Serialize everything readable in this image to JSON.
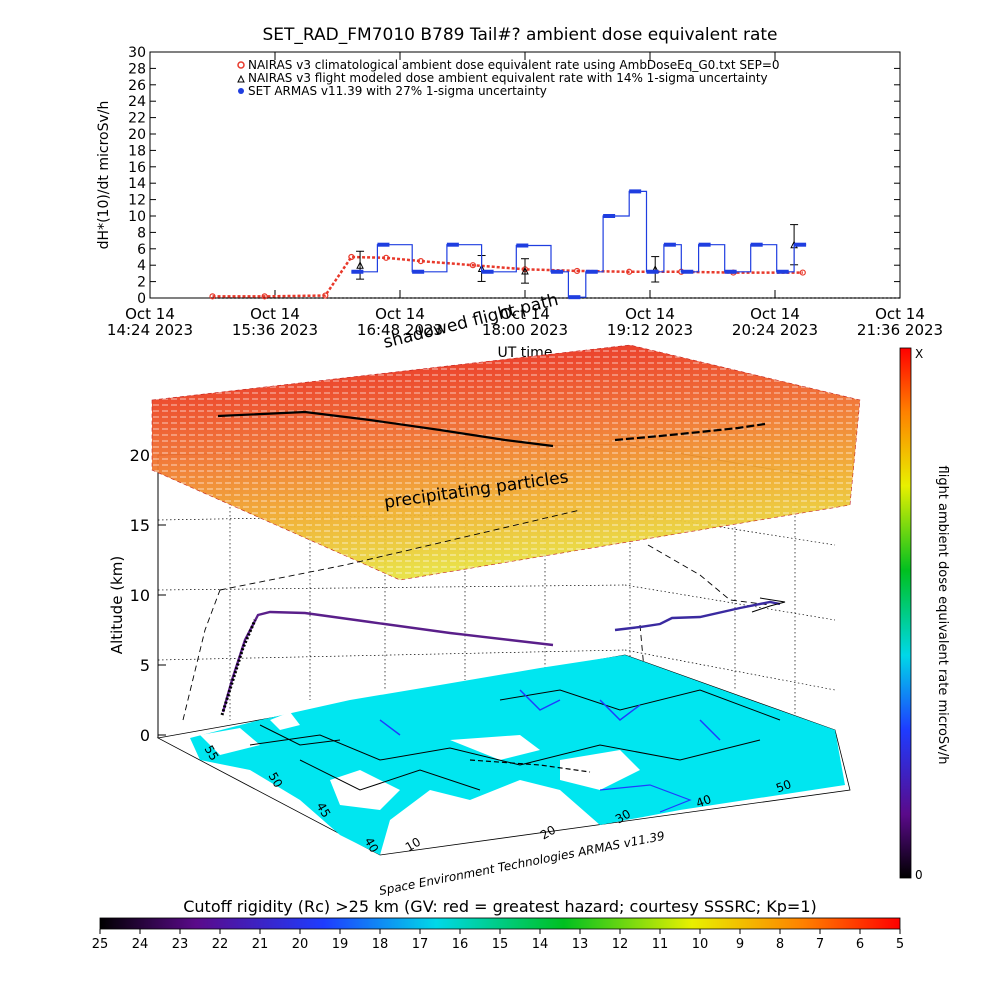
{
  "top_chart": {
    "title": "SET_RAD_FM7010  B789 Tail#? ambient dose equivalent rate",
    "ylabel": "dH*(10)/dt microSv/h",
    "xlabel": "UT time",
    "legend": [
      "NAIRAS v3 climatological ambient dose equivalent rate using AmbDoseEq_G0.txt SEP=0",
      "NAIRAS v3 flight modeled dose ambient equivalent rate with 14% 1-sigma uncertainty",
      "SET ARMAS v11.39 with 27% 1-sigma uncertainty"
    ],
    "x_ticks": [
      {
        "date": "Oct 14",
        "time": "14:24 2023"
      },
      {
        "date": "Oct 14",
        "time": "15:36 2023"
      },
      {
        "date": "Oct 14",
        "time": "16:48 2023"
      },
      {
        "date": "Oct 14",
        "time": "18:00 2023"
      },
      {
        "date": "Oct 14",
        "time": "19:12 2023"
      },
      {
        "date": "Oct 14",
        "time": "20:24 2023"
      },
      {
        "date": "Oct 14",
        "time": "21:36 2023"
      }
    ],
    "y_ticks": [
      "0",
      "2",
      "4",
      "6",
      "8",
      "10",
      "12",
      "14",
      "16",
      "18",
      "20",
      "22",
      "24",
      "26",
      "28",
      "30"
    ]
  },
  "chart_data": [
    {
      "type": "line",
      "title": "SET_RAD_FM7010  B789 Tail#? ambient dose equivalent rate",
      "xlabel": "UT time",
      "ylabel": "dH*(10)/dt microSv/h",
      "xlim": [
        "2023-10-14 14:24",
        "2023-10-14 21:36"
      ],
      "ylim": [
        0,
        30
      ],
      "legend_position": "top",
      "grid": false,
      "series": [
        {
          "name": "NAIRAS v3 climatological ambient dose equivalent rate using AmbDoseEq_G0.txt SEP=0",
          "color": "#e8392b",
          "x": [
            "2023-10-14 15:00",
            "2023-10-14 15:30",
            "2023-10-14 16:05",
            "2023-10-14 16:20",
            "2023-10-14 16:40",
            "2023-10-14 17:00",
            "2023-10-14 17:30",
            "2023-10-14 18:00",
            "2023-10-14 18:30",
            "2023-10-14 19:00",
            "2023-10-14 19:30",
            "2023-10-14 20:00",
            "2023-10-14 20:40"
          ],
          "y": [
            0.2,
            0.2,
            0.3,
            5.0,
            4.9,
            4.5,
            4.0,
            3.5,
            3.3,
            3.2,
            3.2,
            3.1,
            3.1
          ]
        },
        {
          "name": "NAIRAS v3 flight modeled dose ambient equivalent rate with 14% 1-sigma uncertainty",
          "color": "#000000",
          "x": [
            "2023-10-14 16:25",
            "2023-10-14 17:35",
            "2023-10-14 18:00",
            "2023-10-14 19:15",
            "2023-10-14 20:35"
          ],
          "y": [
            4.0,
            3.6,
            3.3,
            3.5,
            6.5
          ]
        },
        {
          "name": "SET ARMAS v11.39 with 27% 1-sigma uncertainty",
          "color": "#1f3ee0",
          "x": [
            "2023-10-14 16:20",
            "2023-10-14 16:35",
            "2023-10-14 16:55",
            "2023-10-14 17:15",
            "2023-10-14 17:35",
            "2023-10-14 17:55",
            "2023-10-14 18:15",
            "2023-10-14 18:25",
            "2023-10-14 18:35",
            "2023-10-14 18:45",
            "2023-10-14 19:00",
            "2023-10-14 19:10",
            "2023-10-14 19:20",
            "2023-10-14 19:30",
            "2023-10-14 19:40",
            "2023-10-14 19:55",
            "2023-10-14 20:10",
            "2023-10-14 20:25",
            "2023-10-14 20:35"
          ],
          "y": [
            3.2,
            6.5,
            3.2,
            6.5,
            3.2,
            6.4,
            3.2,
            0.1,
            3.2,
            10.0,
            13.0,
            3.2,
            6.5,
            3.2,
            6.5,
            3.2,
            6.5,
            3.2,
            6.5
          ]
        }
      ]
    },
    {
      "type": "heatmap",
      "title": "Cutoff rigidity (Rc) >25 km (GV: red = greatest hazard; courtesy SSSRC; Kp=1)",
      "colorbar_ticks": [
        "25",
        "24",
        "23",
        "22",
        "21",
        "20",
        "19",
        "18",
        "17",
        "16",
        "15",
        "14",
        "13",
        "12",
        "11",
        "10",
        "9",
        "8",
        "7",
        "6",
        "5"
      ]
    }
  ],
  "view3d": {
    "altitude_label": "Altitude (km)",
    "altitude_ticks": [
      "0",
      "5",
      "10",
      "15",
      "20"
    ],
    "lat_ticks": [
      "40",
      "45",
      "50",
      "55"
    ],
    "lon_ticks_front": [
      "10",
      "20",
      "30"
    ],
    "lon_ticks_right": [
      "40",
      "50"
    ],
    "shadowed_label": "shadowed flight path",
    "precip_label": "precipitating particles",
    "credit": "Space Environment Technologies ARMAS v11.39"
  },
  "colorbar_right": {
    "label": "flight ambient dose equivalent rate microSv/h",
    "top": "X",
    "bottom": "0"
  },
  "colorbar_bottom": {
    "title": "Cutoff rigidity (Rc) >25 km (GV: red = greatest hazard; courtesy SSSRC; Kp=1)"
  },
  "colors": {
    "nairas_clim": "#e8392b",
    "armas": "#1f3ee0",
    "land": "#00e6f0"
  }
}
